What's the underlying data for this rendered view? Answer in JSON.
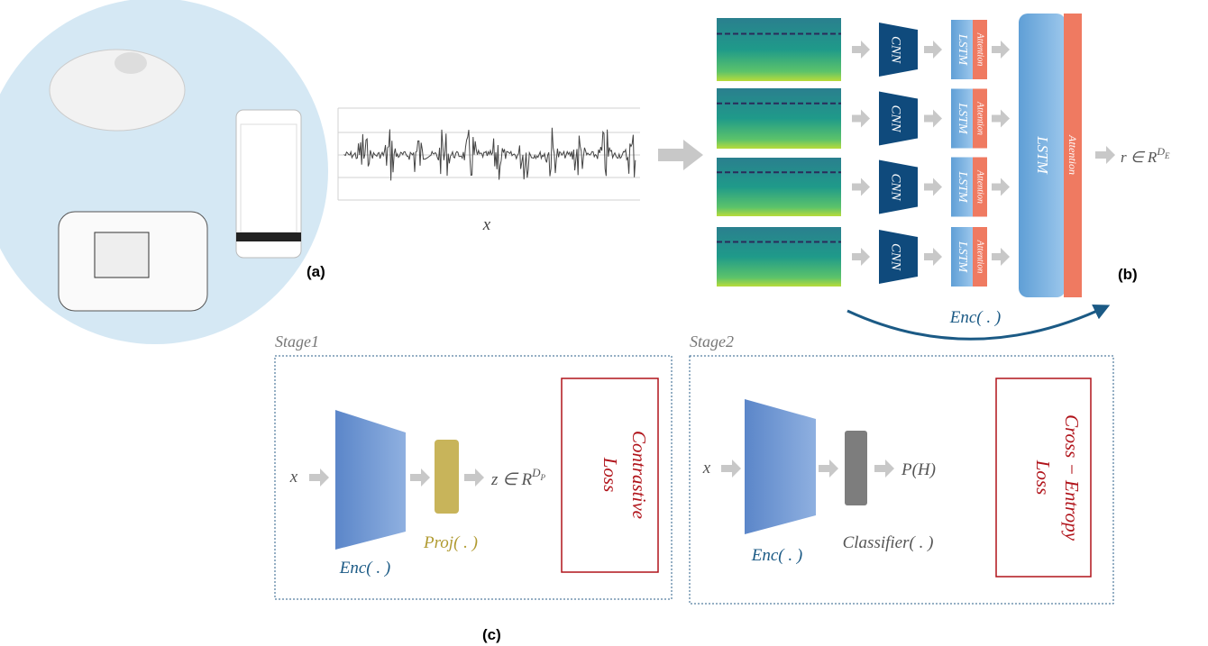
{
  "panel_a": {
    "label": "(a)",
    "signal_label": "x"
  },
  "panel_b": {
    "label": "(b)",
    "branches": [
      {
        "cnn": "CNN",
        "lstm": "LSTM",
        "attention": "Attention"
      },
      {
        "cnn": "CNN",
        "lstm": "LSTM",
        "attention": "Attention"
      },
      {
        "cnn": "CNN",
        "lstm": "LSTM",
        "attention": "Attention"
      },
      {
        "cnn": "CNN",
        "lstm": "LSTM",
        "attention": "Attention"
      }
    ],
    "lstm": "LSTM",
    "attention": "Attention",
    "output": {
      "base": "r ∈ R",
      "sup": "D",
      "sub": "E"
    },
    "encoder": "Enc( . )"
  },
  "panel_c": {
    "label": "(c)",
    "stage1": {
      "title": "Stage1",
      "input": "x",
      "encoder": "Enc( . )",
      "projection": "Proj( . )",
      "output": {
        "base": "z ∈ R",
        "sup": "D",
        "sub": "P"
      },
      "loss": [
        "Contrastive",
        "Loss"
      ]
    },
    "stage2": {
      "title": "Stage2",
      "input": "x",
      "encoder": "Enc( . )",
      "classifier": "Classifier( . )",
      "output": "P(H)",
      "loss": [
        "Cross − Entropy",
        "Loss"
      ]
    }
  }
}
